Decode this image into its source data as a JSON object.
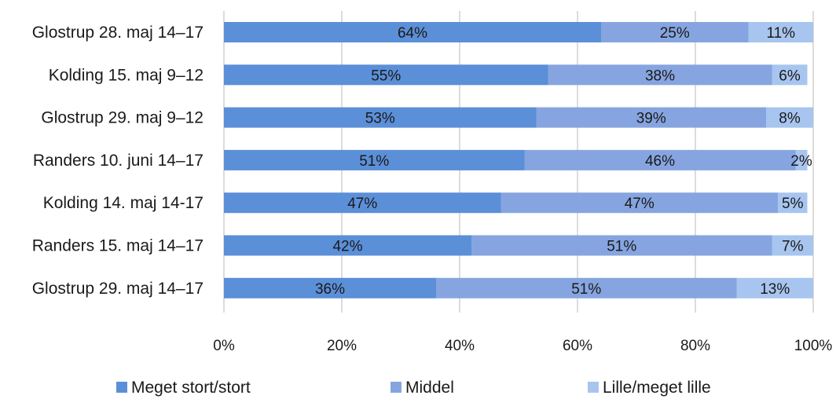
{
  "chart_data": {
    "type": "bar",
    "orientation": "horizontal",
    "stacked": "percent",
    "categories": [
      "Glostrup 28. maj 14–17",
      "Kolding 15. maj 9–12",
      "Glostrup 29. maj 9–12",
      "Randers 10. juni 14–17",
      "Kolding 14. maj 14-17",
      "Randers 15. maj 14–17",
      "Glostrup 29. maj 14–17"
    ],
    "series": [
      {
        "name": "Meget stort/stort",
        "color": "#5b8fd8",
        "values": [
          64,
          55,
          53,
          51,
          47,
          42,
          36
        ],
        "labels": [
          "64%",
          "55%",
          "53%",
          "51%",
          "47%",
          "42%",
          "36%"
        ]
      },
      {
        "name": "Middel",
        "color": "#86a5e0",
        "values": [
          25,
          38,
          39,
          46,
          47,
          51,
          51
        ],
        "labels": [
          "25%",
          "38%",
          "39%",
          "46%",
          "47%",
          "51%",
          "51%"
        ]
      },
      {
        "name": "Lille/meget lille",
        "color": "#a7c5ef",
        "values": [
          11,
          6,
          8,
          2,
          5,
          7,
          13
        ],
        "labels": [
          "11%",
          "6%",
          "8%",
          "2%",
          "5%",
          "7%",
          "13%"
        ]
      }
    ],
    "xlim": [
      0,
      100
    ],
    "xticks": [
      "0%",
      "20%",
      "40%",
      "60%",
      "80%",
      "100%"
    ],
    "grid": "vertical",
    "legend": "bottom"
  }
}
